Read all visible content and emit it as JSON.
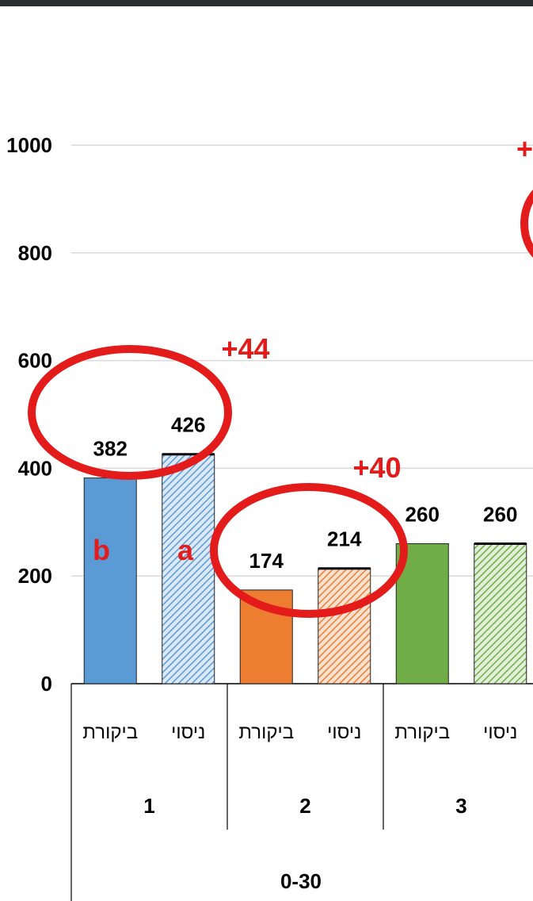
{
  "chart_data": {
    "type": "bar",
    "ylim": [
      0,
      1000
    ],
    "yticks": [
      "0",
      "200",
      "400",
      "600",
      "800",
      "1000"
    ],
    "grid": true,
    "categories": [
      "ביקורת",
      "ניסוי",
      "ביקורת",
      "ניסוי",
      "ביקורת",
      "ניסוי"
    ],
    "groups": [
      "1",
      "2",
      "3"
    ],
    "supergroup": "0-30",
    "values": [
      382,
      426,
      174,
      214,
      260,
      260
    ],
    "value_labels": [
      "382",
      "426",
      "174",
      "214",
      "260",
      "260"
    ],
    "colors": [
      "#5b9bd5",
      "#5b9bd5",
      "#ed7d31",
      "#ed7d31",
      "#70ad47",
      "#70ad47"
    ],
    "patterns": [
      "solid",
      "hatched",
      "solid",
      "hatched",
      "solid",
      "hatched"
    ],
    "annotations": {
      "diffs": [
        "+44",
        "+40",
        "+"
      ],
      "letters": [
        "b",
        "a"
      ],
      "color": "#e41b1b"
    }
  }
}
